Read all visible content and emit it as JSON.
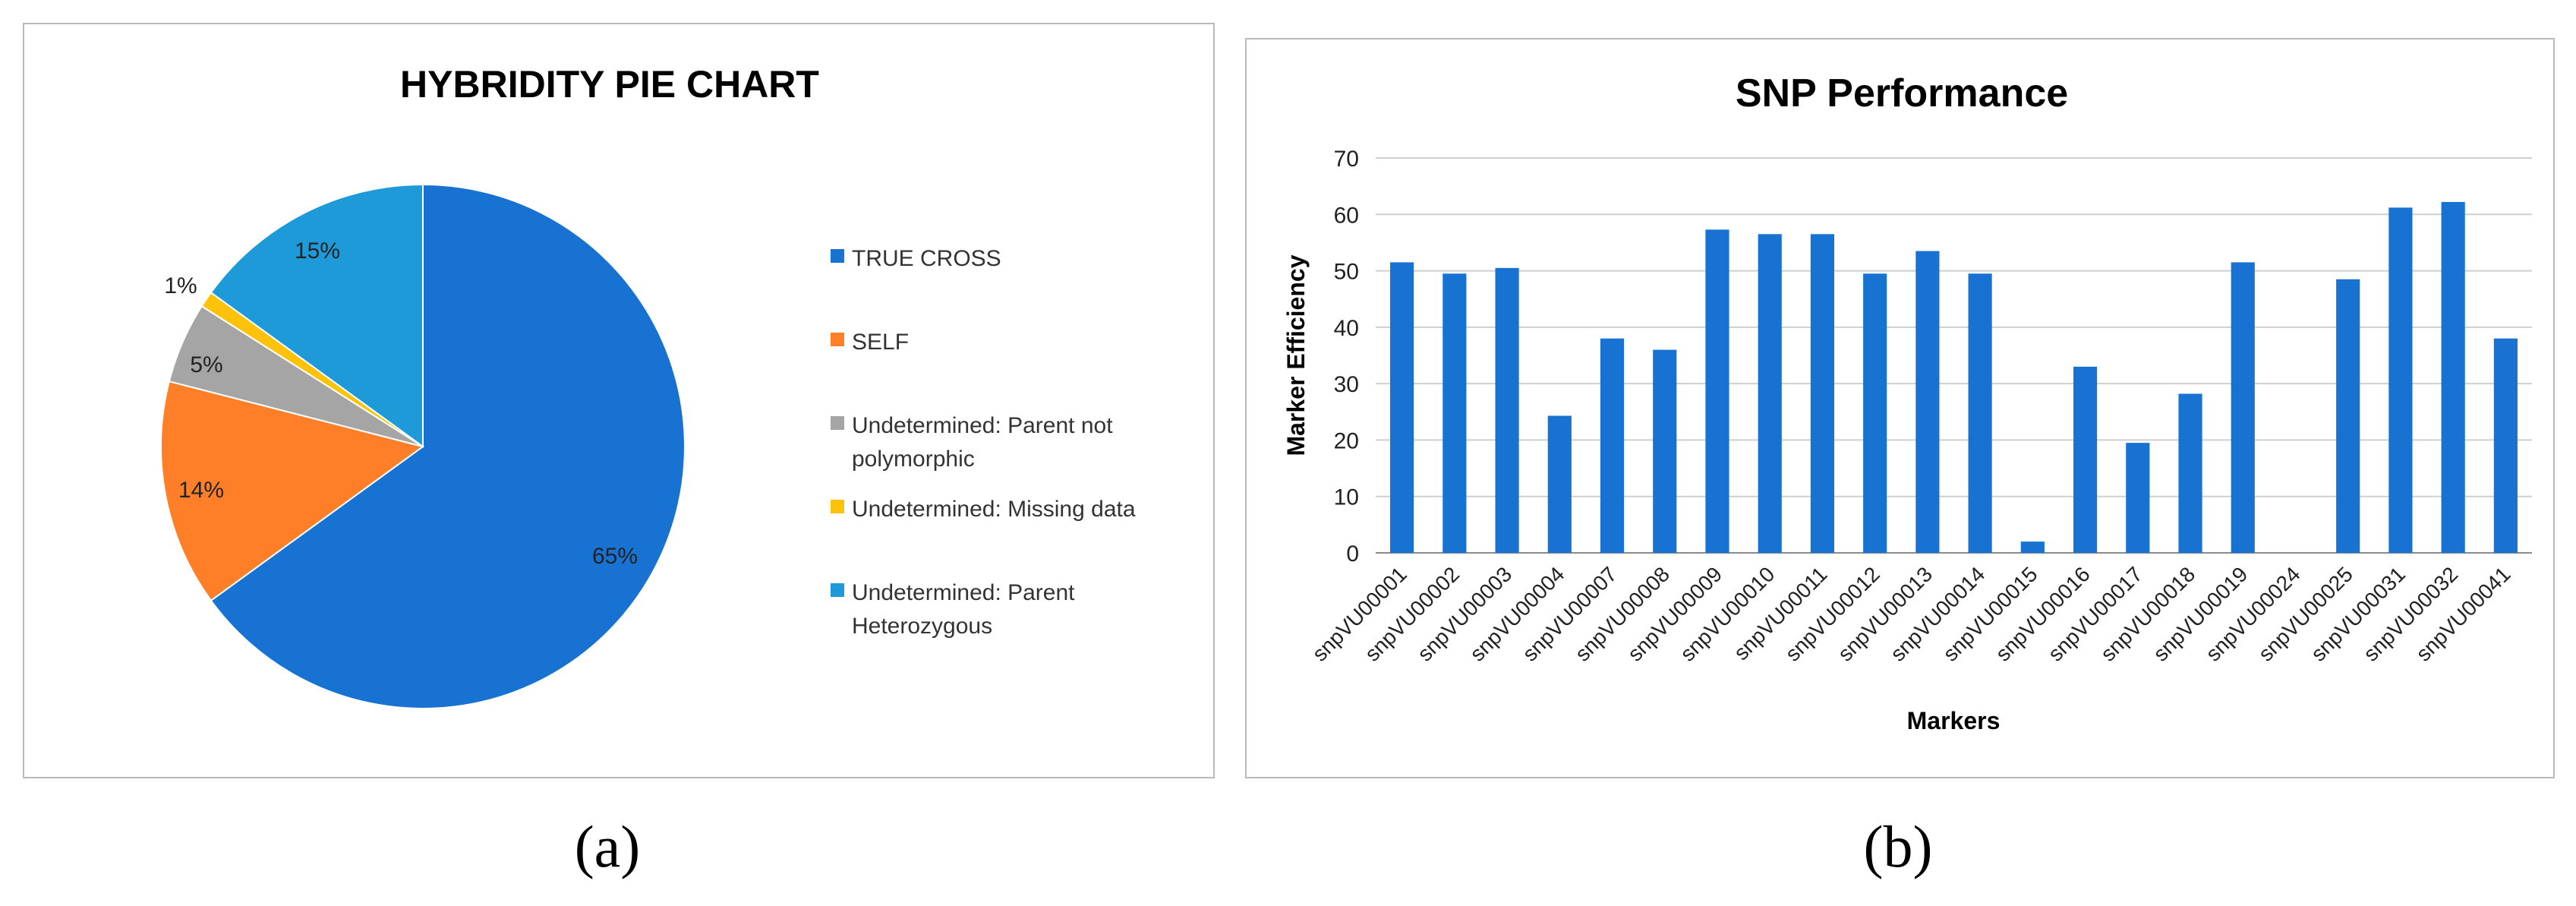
{
  "chart_data": [
    {
      "type": "pie",
      "title": "HYBRIDITY PIE CHART",
      "legend_position": "right",
      "slices": [
        {
          "label": "TRUE CROSS",
          "value": 65,
          "display": "65%",
          "color": "#1872d2"
        },
        {
          "label": "SELF",
          "value": 14,
          "display": "14%",
          "color": "#fe7f27"
        },
        {
          "label": "Undetermined: Parent not polymorphic",
          "value": 5,
          "display": "5%",
          "color": "#a5a5a5"
        },
        {
          "label": "Undetermined: Missing data",
          "value": 1,
          "display": "1%",
          "color": "#fec20b"
        },
        {
          "label": "Undetermined: Parent Heterozygous",
          "value": 15,
          "display": "15%",
          "color": "#1e9ad9"
        }
      ],
      "legend_lines": [
        [
          "TRUE CROSS"
        ],
        [
          "SELF"
        ],
        [
          "Undetermined: Parent not",
          "polymorphic"
        ],
        [
          "Undetermined: Missing data"
        ],
        [
          "Undetermined: Parent",
          "Heterozygous"
        ]
      ]
    },
    {
      "type": "bar",
      "title": "SNP   Performance",
      "xlabel": "Markers",
      "ylabel": "Marker Efficiency",
      "ylim": [
        0,
        70
      ],
      "yticks": [
        0,
        10,
        20,
        30,
        40,
        50,
        60,
        70
      ],
      "grid": true,
      "bar_color": "#1872d2",
      "categories": [
        "snpVU00001",
        "snpVU00002",
        "snpVU00003",
        "snpVU00004",
        "snpVU00007",
        "snpVU00008",
        "snpVU00009",
        "snpVU00010",
        "snpVU00011",
        "snpVU00012",
        "snpVU00013",
        "snpVU00014",
        "snpVU00015",
        "snpVU00016",
        "snpVU00017",
        "snpVU00018",
        "snpVU00019",
        "snpVU00024",
        "snpVU00025",
        "snpVU00031",
        "snpVU00032",
        "snpVU00041"
      ],
      "values": [
        51.5,
        49.5,
        50.5,
        24.3,
        38,
        36,
        57.3,
        56.5,
        56.5,
        49.5,
        53.5,
        49.5,
        2,
        33,
        19.5,
        28.2,
        51.5,
        0,
        48.5,
        61.2,
        62.2,
        38
      ]
    }
  ],
  "labels": {
    "a": "(a)",
    "b": "(b)"
  }
}
